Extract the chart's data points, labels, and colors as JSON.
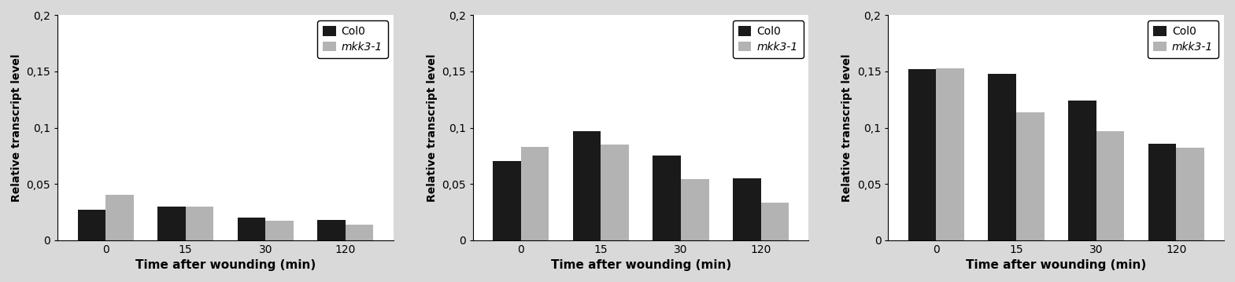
{
  "panels": [
    {
      "col0": [
        0.027,
        0.03,
        0.02,
        0.018
      ],
      "mkk3_1": [
        0.04,
        0.03,
        0.017,
        0.014
      ]
    },
    {
      "col0": [
        0.07,
        0.097,
        0.075,
        0.055
      ],
      "mkk3_1": [
        0.083,
        0.085,
        0.054,
        0.033
      ]
    },
    {
      "col0": [
        0.152,
        0.148,
        0.124,
        0.086
      ],
      "mkk3_1": [
        0.153,
        0.114,
        0.097,
        0.082
      ]
    }
  ],
  "x_labels": [
    "0",
    "15",
    "30",
    "120"
  ],
  "xlabel": "Time after wounding (min)",
  "ylabel": "Relative transcript level",
  "col0_color": "#1a1a1a",
  "mkk3_color": "#b3b3b3",
  "ylim": [
    0,
    0.2
  ],
  "yticks": [
    0,
    0.05,
    0.1,
    0.15,
    0.2
  ],
  "ytick_labels": [
    "0",
    "0,05",
    "0,1",
    "0,15",
    "0,2"
  ],
  "legend_col0": "Col0",
  "legend_mkk3": "mkk3-1",
  "bar_width": 0.35,
  "fig_bg_color": "#d9d9d9",
  "plot_bg_color": "#ffffff"
}
